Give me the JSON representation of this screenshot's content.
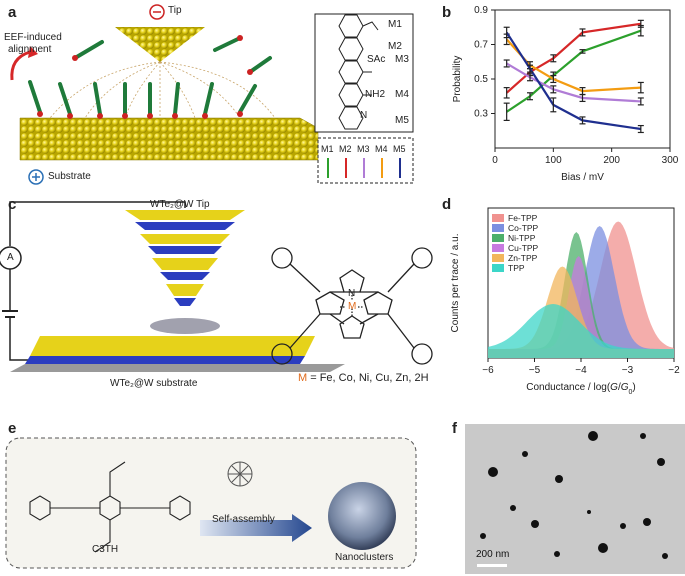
{
  "panels": {
    "a": {
      "letter": "a",
      "tip_label": "Tip",
      "substrate_label": "Substrate",
      "eef_label_line1": "EEF-induced",
      "eef_label_line2": "alignment",
      "molecules": [
        {
          "id": "M1",
          "group": "S"
        },
        {
          "id": "M2",
          "group": ""
        },
        {
          "id": "M3",
          "group": "SAc"
        },
        {
          "id": "M4",
          "group": "NH2"
        },
        {
          "id": "M5",
          "group": "N"
        }
      ],
      "legend_labels": [
        "M1",
        "M2",
        "M3",
        "M4",
        "M5"
      ],
      "legend_colors": [
        "#2ca02c",
        "#d62728",
        "#b07cd6",
        "#f39c12",
        "#1f2f8f"
      ]
    },
    "b": {
      "letter": "b",
      "xlabel": "Bias / mV",
      "ylabel": "Probability",
      "xticks": [
        "0",
        "100",
        "200",
        "300"
      ],
      "yticks": [
        "0.3",
        "0.5",
        "0.7",
        "0.9"
      ]
    },
    "c": {
      "letter": "c",
      "tip_label": "WTe₂@W Tip",
      "substrate_label": "WTe₂@W substrate",
      "ammeter": "A",
      "metal_symbol": "M",
      "metal_list_prefix": "M",
      "metal_list": "= Fe, Co, Ni, Cu, Zn, 2H",
      "atom_N": "N"
    },
    "d": {
      "letter": "d",
      "xlabel_prefix": "Conductance / log(",
      "xlabel_var": "G",
      "xlabel_mid": "/",
      "xlabel_var2": "G",
      "xlabel_sub": "0",
      "xlabel_suffix": ")",
      "ylabel": "Counts per trace / a.u.",
      "xticks": [
        "−6",
        "−5",
        "−4",
        "−3",
        "−2"
      ],
      "legend": [
        {
          "name": "Fe-TPP",
          "color": "#f0928f"
        },
        {
          "name": "Co-TPP",
          "color": "#7b8fe0"
        },
        {
          "name": "Ni-TPP",
          "color": "#4caf6a"
        },
        {
          "name": "Cu-TPP",
          "color": "#c77be0"
        },
        {
          "name": "Zn-TPP",
          "color": "#f2b65c"
        },
        {
          "name": "TPP",
          "color": "#3cd6c8"
        }
      ]
    },
    "e": {
      "letter": "e",
      "molecule_name": "C3TH",
      "arrow_label": "Self-assembly",
      "product_label": "Nanoclusters"
    },
    "f": {
      "letter": "f",
      "scale_bar": "200 nm"
    }
  },
  "chart_data": {
    "type": "line",
    "x": [
      20,
      60,
      100,
      150,
      250
    ],
    "xlabel": "Bias / mV",
    "ylabel": "Probability",
    "xlim": [
      0,
      300
    ],
    "ylim": [
      0.1,
      0.9
    ],
    "series": [
      {
        "name": "M1",
        "color": "#2ca02c",
        "values": [
          0.31,
          0.4,
          0.52,
          0.66,
          0.78
        ],
        "err": [
          0.05,
          0.02,
          0.02,
          0.01,
          0.03
        ]
      },
      {
        "name": "M2",
        "color": "#d62728",
        "values": [
          0.42,
          0.54,
          0.62,
          0.77,
          0.82
        ],
        "err": [
          0.03,
          0.02,
          0.02,
          0.02,
          0.02
        ]
      },
      {
        "name": "M3",
        "color": "#b07cd6",
        "values": [
          0.59,
          0.51,
          0.44,
          0.39,
          0.37
        ],
        "err": [
          0.02,
          0.02,
          0.02,
          0.02,
          0.02
        ]
      },
      {
        "name": "M4",
        "color": "#f39c12",
        "values": [
          0.73,
          0.58,
          0.5,
          0.43,
          0.45
        ],
        "err": [
          0.03,
          0.02,
          0.02,
          0.02,
          0.03
        ]
      },
      {
        "name": "M5",
        "color": "#1f2f8f",
        "values": [
          0.77,
          0.56,
          0.35,
          0.26,
          0.21
        ],
        "err": [
          0.03,
          0.02,
          0.04,
          0.02,
          0.02
        ]
      }
    ]
  }
}
